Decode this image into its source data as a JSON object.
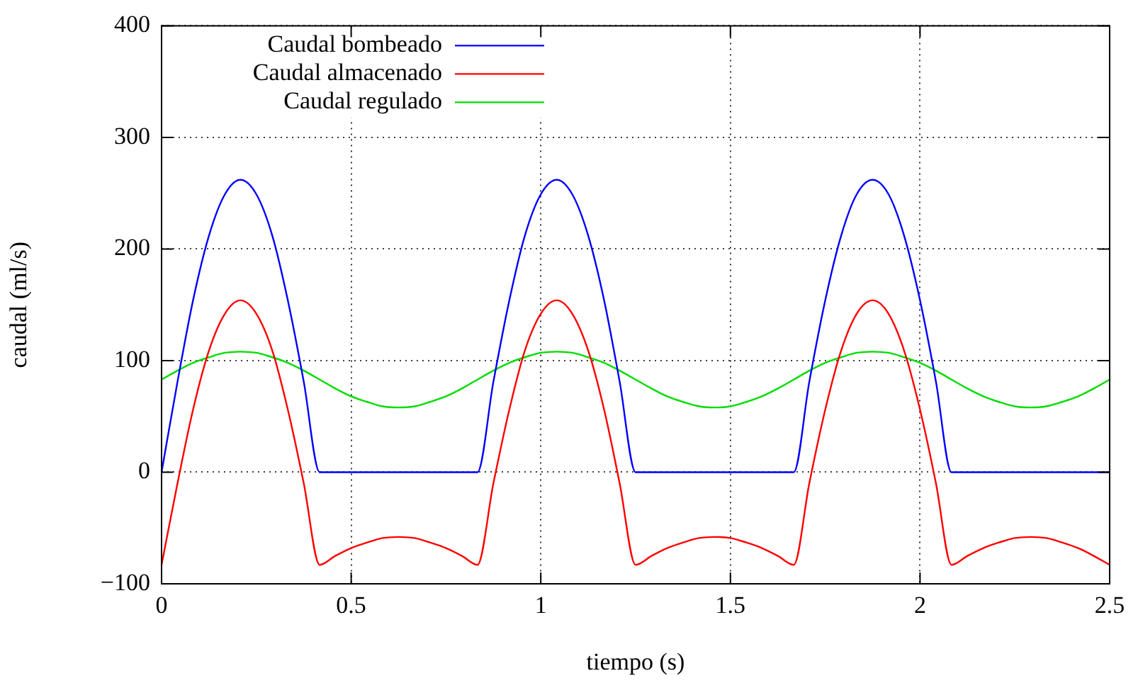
{
  "chart_data": {
    "type": "line",
    "xlabel": "tiempo (s)",
    "ylabel": "caudal (ml/s)",
    "x": [
      0,
      0.042,
      0.083,
      0.125,
      0.167,
      0.208,
      0.25,
      0.292,
      0.333,
      0.375,
      0.417,
      0.458,
      0.5,
      0.542,
      0.583,
      0.625,
      0.667,
      0.708,
      0.75,
      0.792,
      0.833,
      0.875,
      0.917,
      0.958,
      1,
      1.042,
      1.083,
      1.125,
      1.167,
      1.208,
      1.25,
      1.292,
      1.333,
      1.375,
      1.417,
      1.458,
      1.5,
      1.542,
      1.583,
      1.625,
      1.667,
      1.708,
      1.75,
      1.792,
      1.833,
      1.875,
      1.917,
      1.958,
      2,
      2.042,
      2.083,
      2.125,
      2.167,
      2.208,
      2.25,
      2.292,
      2.333,
      2.375,
      2.417,
      2.458,
      2.5
    ],
    "series": [
      {
        "name": "Caudal bombeado",
        "color": "#0000ff",
        "values": [
          0,
          81,
          154,
          212,
          249,
          262,
          249,
          212,
          154,
          81,
          0,
          0,
          0,
          0,
          0,
          0,
          0,
          0,
          0,
          0,
          0,
          81,
          154,
          212,
          249,
          262,
          249,
          212,
          154,
          81,
          0,
          0,
          0,
          0,
          0,
          0,
          0,
          0,
          0,
          0,
          0,
          81,
          154,
          212,
          249,
          262,
          249,
          212,
          154,
          81,
          0,
          0,
          0,
          0,
          0,
          0,
          0,
          0,
          0,
          0,
          0
        ]
      },
      {
        "name": "Caudal almacenado",
        "color": "#ff0000",
        "values": [
          -83,
          -10,
          56,
          109,
          142,
          154,
          142,
          109,
          56,
          -10,
          -83,
          -75,
          -68,
          -63,
          -59,
          -58,
          -59,
          -63,
          -68,
          -75,
          -83,
          -10,
          56,
          109,
          142,
          154,
          142,
          109,
          56,
          -10,
          -83,
          -75,
          -68,
          -63,
          -59,
          -58,
          -59,
          -63,
          -68,
          -75,
          -83,
          -10,
          56,
          109,
          142,
          154,
          142,
          109,
          56,
          -10,
          -83,
          -75,
          -68,
          -63,
          -59,
          -58,
          -59,
          -63,
          -68,
          -75,
          -83
        ]
      },
      {
        "name": "Caudal regulado",
        "color": "#00dd00",
        "values": [
          83,
          91,
          98,
          103,
          107,
          108,
          107,
          103,
          98,
          91,
          83,
          75,
          68,
          63,
          59,
          58,
          59,
          63,
          68,
          75,
          83,
          91,
          98,
          103,
          107,
          108,
          107,
          103,
          98,
          91,
          83,
          75,
          68,
          63,
          59,
          58,
          59,
          63,
          68,
          75,
          83,
          91,
          98,
          103,
          107,
          108,
          107,
          103,
          98,
          91,
          83,
          75,
          68,
          63,
          59,
          58,
          59,
          63,
          68,
          75,
          83
        ]
      }
    ],
    "xlim": [
      0,
      2.5
    ],
    "xticks": [
      0,
      0.5,
      1,
      1.5,
      2,
      2.5
    ],
    "ylim": [
      -100,
      400
    ],
    "yticks": [
      {
        "value": -100,
        "label": "−100"
      },
      0,
      100,
      200,
      300,
      400
    ],
    "grid": true,
    "legend": "top left",
    "marker": "none",
    "line_style": "solid"
  }
}
